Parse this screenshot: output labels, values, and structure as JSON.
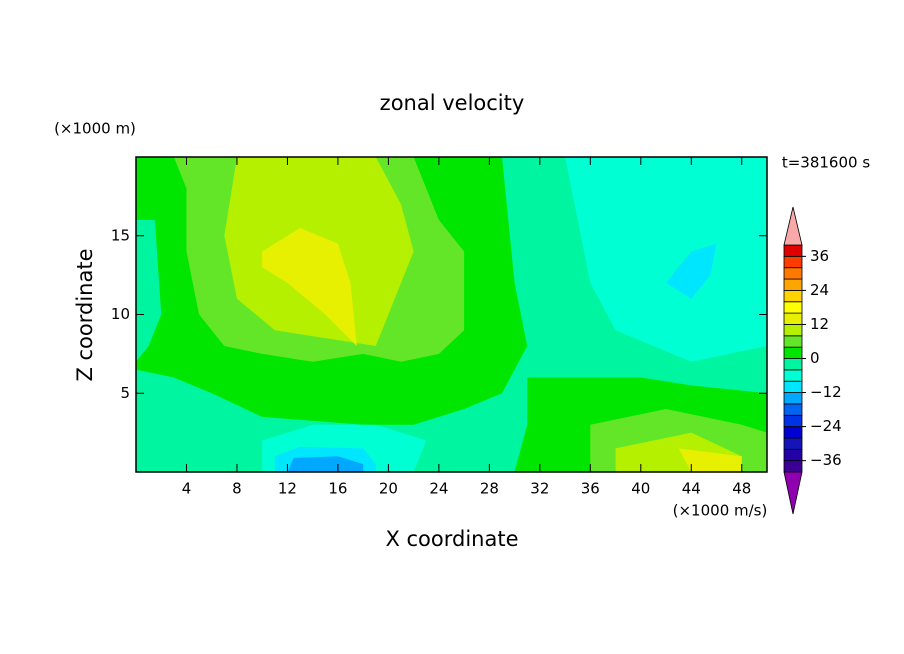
{
  "chart_data": {
    "type": "contour",
    "title": "zonal velocity",
    "x_label": "X coordinate",
    "y_label": "Z coordinate",
    "x_unit": "(×1000 m/s)",
    "y_unit": "(×1000 m)",
    "time_label": "t=381600 s",
    "xlim": [
      0,
      50
    ],
    "ylim": [
      0,
      20
    ],
    "xticks": [
      4,
      8,
      12,
      16,
      20,
      24,
      28,
      32,
      36,
      40,
      44,
      48
    ],
    "yticks": [
      5,
      10,
      15
    ],
    "levels": [
      -40,
      -36,
      -32,
      -28,
      -24,
      -20,
      -16,
      -12,
      -8,
      -4,
      0,
      4,
      8,
      12,
      16,
      20,
      24,
      28,
      32,
      36,
      40
    ],
    "colors": [
      "#3c0096",
      "#2400a8",
      "#1414b8",
      "#0000d2",
      "#0032e6",
      "#0064f5",
      "#00a8ff",
      "#00e6ff",
      "#00ffd2",
      "#00f5a0",
      "#00e600",
      "#64e628",
      "#b4f000",
      "#e6f000",
      "#ffff00",
      "#ffd200",
      "#ffa500",
      "#ff7800",
      "#ff3c00",
      "#e00000"
    ],
    "under_color": "#9000b0",
    "over_color": "#f8a8a8",
    "cbar_ticks": [
      {
        "value": 36,
        "label": "36"
      },
      {
        "value": 24,
        "label": "24"
      },
      {
        "value": 12,
        "label": "12"
      },
      {
        "value": 0,
        "label": "0"
      },
      {
        "value": -12,
        "label": "−12"
      },
      {
        "value": -24,
        "label": "−24"
      },
      {
        "value": -36,
        "label": "−36"
      }
    ],
    "contours": [
      {
        "level": -4,
        "points": [
          [
            0,
            0
          ],
          [
            50,
            0
          ],
          [
            50,
            20
          ],
          [
            0,
            20
          ]
        ]
      },
      {
        "level": 0,
        "points": [
          [
            0,
            20
          ],
          [
            29,
            20
          ],
          [
            30,
            12
          ],
          [
            31,
            8
          ],
          [
            29,
            5
          ],
          [
            26,
            4
          ],
          [
            22,
            3
          ],
          [
            18,
            3
          ],
          [
            10,
            3.5
          ],
          [
            6,
            5
          ],
          [
            3,
            6
          ],
          [
            0,
            6.5
          ]
        ]
      },
      {
        "level": -4,
        "points": [
          [
            0,
            16
          ],
          [
            1.5,
            16
          ],
          [
            2,
            10
          ],
          [
            1,
            8
          ],
          [
            0,
            7
          ]
        ]
      },
      {
        "level": 4,
        "points": [
          [
            3,
            20
          ],
          [
            22,
            20
          ],
          [
            24,
            16
          ],
          [
            26,
            14
          ],
          [
            26,
            9
          ],
          [
            24,
            7.5
          ],
          [
            21,
            7
          ],
          [
            18,
            7.5
          ],
          [
            14,
            7
          ],
          [
            10,
            7.5
          ],
          [
            7,
            8
          ],
          [
            5,
            10
          ],
          [
            4,
            14
          ],
          [
            4,
            18
          ]
        ]
      },
      {
        "level": 8,
        "points": [
          [
            8,
            20
          ],
          [
            19,
            20
          ],
          [
            21,
            17
          ],
          [
            22,
            14
          ],
          [
            20,
            10
          ],
          [
            19,
            8
          ],
          [
            15,
            8.5
          ],
          [
            11,
            9
          ],
          [
            8,
            11
          ],
          [
            7,
            15
          ]
        ]
      },
      {
        "level": 12,
        "points": [
          [
            10,
            14
          ],
          [
            13,
            15.5
          ],
          [
            16,
            14.5
          ],
          [
            17,
            12
          ],
          [
            17.5,
            8
          ],
          [
            15,
            10
          ],
          [
            12,
            12
          ],
          [
            10,
            13
          ]
        ]
      },
      {
        "level": -8,
        "points": [
          [
            34,
            20
          ],
          [
            50,
            20
          ],
          [
            50,
            8
          ],
          [
            44,
            7
          ],
          [
            38,
            9
          ],
          [
            36,
            12
          ],
          [
            35,
            16
          ]
        ]
      },
      {
        "level": -12,
        "points": [
          [
            42,
            12
          ],
          [
            44,
            14
          ],
          [
            46,
            14.5
          ],
          [
            45.5,
            12.5
          ],
          [
            44,
            11
          ],
          [
            43,
            11.5
          ]
        ]
      },
      {
        "level": 0,
        "points": [
          [
            31,
            6
          ],
          [
            40,
            6
          ],
          [
            44,
            5.5
          ],
          [
            50,
            5
          ],
          [
            50,
            0
          ],
          [
            30,
            0
          ],
          [
            31,
            3
          ]
        ]
      },
      {
        "level": 4,
        "points": [
          [
            36,
            3
          ],
          [
            42,
            4
          ],
          [
            48,
            3
          ],
          [
            50,
            2.5
          ],
          [
            50,
            0
          ],
          [
            36,
            0
          ]
        ]
      },
      {
        "level": 8,
        "points": [
          [
            38,
            1.5
          ],
          [
            44,
            2.5
          ],
          [
            48,
            1
          ],
          [
            48,
            0
          ],
          [
            38,
            0
          ]
        ]
      },
      {
        "level": 12,
        "points": [
          [
            43,
            1.5
          ],
          [
            48,
            1
          ],
          [
            48,
            0
          ],
          [
            44,
            0
          ]
        ]
      },
      {
        "level": -8,
        "points": [
          [
            10,
            2
          ],
          [
            14,
            3
          ],
          [
            19,
            3
          ],
          [
            23,
            2
          ],
          [
            22,
            0
          ],
          [
            10,
            0
          ]
        ]
      },
      {
        "level": -12,
        "points": [
          [
            11,
            1
          ],
          [
            13,
            1.6
          ],
          [
            18,
            1.5
          ],
          [
            19,
            0.5
          ],
          [
            19,
            0
          ],
          [
            11,
            0
          ]
        ]
      },
      {
        "level": -16,
        "points": [
          [
            12,
            0
          ],
          [
            12.5,
            0.9
          ],
          [
            16,
            1
          ],
          [
            18,
            0.5
          ],
          [
            18,
            0
          ]
        ]
      }
    ]
  }
}
